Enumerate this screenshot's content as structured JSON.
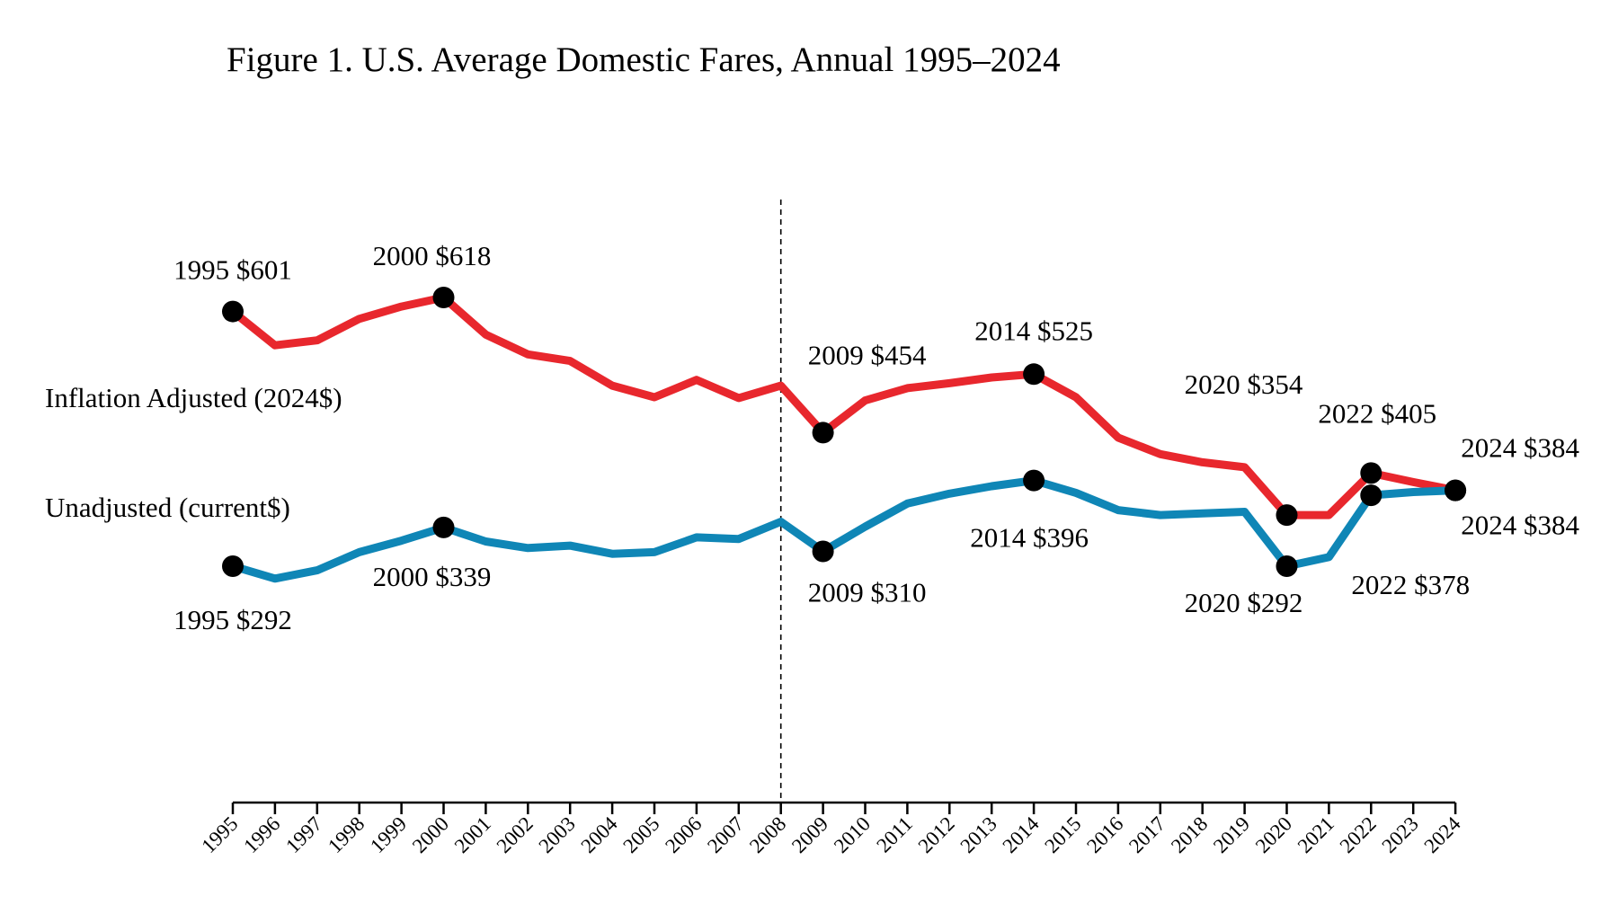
{
  "chart_data": {
    "type": "line",
    "title": "Figure 1. U.S. Average Domestic Fares, Annual 1995–2024",
    "xlabel": "",
    "ylabel": "",
    "x": [
      "1995",
      "1996",
      "1997",
      "1998",
      "1999",
      "2000",
      "2001",
      "2002",
      "2003",
      "2004",
      "2005",
      "2006",
      "2007",
      "2008",
      "2009",
      "2010",
      "2011",
      "2012",
      "2013",
      "2014",
      "2015",
      "2016",
      "2017",
      "2018",
      "2019",
      "2020",
      "2021",
      "2022",
      "2023",
      "2024"
    ],
    "ylim": [
      100,
      700
    ],
    "grid": false,
    "reference_line": {
      "x": "2008",
      "style": "dashed"
    },
    "series": [
      {
        "name": "Inflation Adjusted (2024$)",
        "color": "#e8272d",
        "values": [
          601,
          560,
          566,
          592,
          607,
          618,
          573,
          549,
          541,
          511,
          497,
          518,
          496,
          511,
          454,
          493,
          508,
          514,
          521,
          525,
          497,
          448,
          428,
          418,
          412,
          354,
          354,
          405,
          394,
          384
        ],
        "labels": [
          {
            "x": "1995",
            "text": "1995 $601"
          },
          {
            "x": "2000",
            "text": "2000 $618"
          },
          {
            "x": "2009",
            "text": "2009 $454"
          },
          {
            "x": "2014",
            "text": "2014 $525"
          },
          {
            "x": "2020",
            "text": "2020 $354"
          },
          {
            "x": "2022",
            "text": "2022 $405"
          },
          {
            "x": "2024",
            "text": "2024 $384"
          }
        ]
      },
      {
        "name": "Unadjusted (current$)",
        "color": "#0f86b6",
        "values": [
          292,
          277,
          287,
          309,
          323,
          339,
          322,
          314,
          317,
          307,
          309,
          327,
          325,
          346,
          310,
          340,
          368,
          380,
          389,
          396,
          381,
          360,
          354,
          356,
          358,
          292,
          303,
          378,
          382,
          384
        ],
        "labels": [
          {
            "x": "1995",
            "text": "1995 $292"
          },
          {
            "x": "2000",
            "text": "2000 $339"
          },
          {
            "x": "2009",
            "text": "2009 $310"
          },
          {
            "x": "2014",
            "text": "2014 $396"
          },
          {
            "x": "2020",
            "text": "2020 $292"
          },
          {
            "x": "2022",
            "text": "2022 $378"
          },
          {
            "x": "2024",
            "text": "2024 $384"
          }
        ]
      }
    ]
  }
}
